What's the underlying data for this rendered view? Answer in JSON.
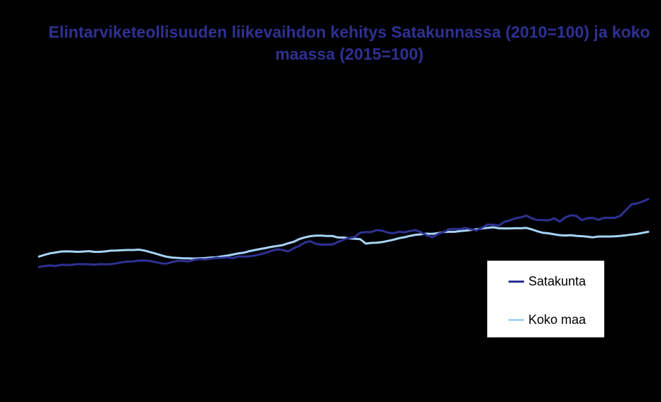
{
  "chart_data": {
    "type": "line",
    "title": "Elintarviketeollisuuden liikevaihdon kehitys Satakunnassa (2010=100) ja koko maassa (2015=100)",
    "xlabel": "",
    "ylabel": "",
    "grid": false,
    "legend_position": "bottom-right",
    "x_count": 111,
    "ylim": [
      0,
      100
    ],
    "series": [
      {
        "name": "Satakunta",
        "color": "#2e3192",
        "values": [
          "30.0",
          "30.6",
          "30.9",
          "30.6",
          "31.3",
          "31.1",
          "31.3",
          "31.7",
          "31.7",
          "31.6",
          "31.4",
          "31.7",
          "31.6",
          "31.7",
          "32.2",
          "32.8",
          "33.2",
          "33.3",
          "33.8",
          "33.9",
          "33.6",
          "32.9",
          "32.2",
          "32.0",
          "32.9",
          "33.6",
          "33.6",
          "33.3",
          "34.2",
          "34.7",
          "34.5",
          "34.9",
          "35.4",
          "35.3",
          "35.7",
          "35.3",
          "36.3",
          "36.2",
          "36.4",
          "36.8",
          "37.6",
          "38.5",
          "39.6",
          "40.5",
          "40.1",
          "39.2",
          "41.1",
          "42.6",
          "44.5",
          "45.3",
          "43.7",
          "43.3",
          "43.3",
          "43.4",
          "44.9",
          "46.2",
          "47.2",
          "47.9",
          "50.3",
          "50.7",
          "50.8",
          "51.9",
          "51.5",
          "50.4",
          "50.1",
          "50.9",
          "50.6",
          "51.4",
          "51.9",
          "50.6",
          "48.8",
          "47.7",
          "49.5",
          "50.7",
          "52.4",
          "52.7",
          "52.5",
          "53.2",
          "52.5",
          "51.6",
          "53.4",
          "55.2",
          "55.1",
          "54.6",
          "56.8",
          "57.7",
          "58.9",
          "59.5",
          "60.5",
          "58.8",
          "57.9",
          "57.8",
          "57.7",
          "58.9",
          "57.0",
          "59.4",
          "60.7",
          "60.4",
          "57.8",
          "59.0",
          "59.2",
          "58.0",
          "59.2",
          "59.2",
          "59.2",
          "60.5",
          "63.9",
          "67.2",
          "67.8",
          "68.9",
          "70.4"
        ]
      },
      {
        "name": "Koko maa",
        "color": "#a6d4f5",
        "values": [
          "36.2",
          "37.2",
          "38.1",
          "38.6",
          "39.2",
          "39.3",
          "39.2",
          "39.0",
          "39.2",
          "39.4",
          "39.0",
          "39.0",
          "39.3",
          "39.7",
          "39.8",
          "40.0",
          "40.1",
          "40.1",
          "40.3",
          "39.8",
          "38.9",
          "38.0",
          "37.0",
          "36.1",
          "35.6",
          "35.4",
          "35.2",
          "35.1",
          "35.0",
          "35.2",
          "35.3",
          "35.6",
          "35.8",
          "36.3",
          "36.8",
          "37.4",
          "38.1",
          "38.5",
          "39.4",
          "40.1",
          "40.7",
          "41.3",
          "42.0",
          "42.5",
          "43.0",
          "44.1",
          "45.0",
          "46.6",
          "47.6",
          "48.3",
          "48.6",
          "48.6",
          "48.4",
          "48.4",
          "47.5",
          "47.5",
          "47.0",
          "46.8",
          "46.5",
          "43.9",
          "44.3",
          "44.4",
          "44.8",
          "45.5",
          "46.2",
          "47.1",
          "47.7",
          "48.5",
          "49.1",
          "49.4",
          "49.8",
          "49.7",
          "50.1",
          "50.7",
          "50.9",
          "50.9",
          "51.3",
          "51.6",
          "52.0",
          "52.4",
          "52.9",
          "53.2",
          "53.6",
          "53.0",
          "52.9",
          "52.9",
          "53.1",
          "53.0",
          "53.2",
          "52.3",
          "51.2",
          "50.3",
          "50.0",
          "49.4",
          "48.9",
          "48.7",
          "48.9",
          "48.5",
          "48.3",
          "48.0",
          "47.6",
          "48.1",
          "48.1",
          "48.1",
          "48.2",
          "48.5",
          "48.8",
          "49.3",
          "49.6",
          "50.3",
          "50.9"
        ]
      }
    ]
  }
}
